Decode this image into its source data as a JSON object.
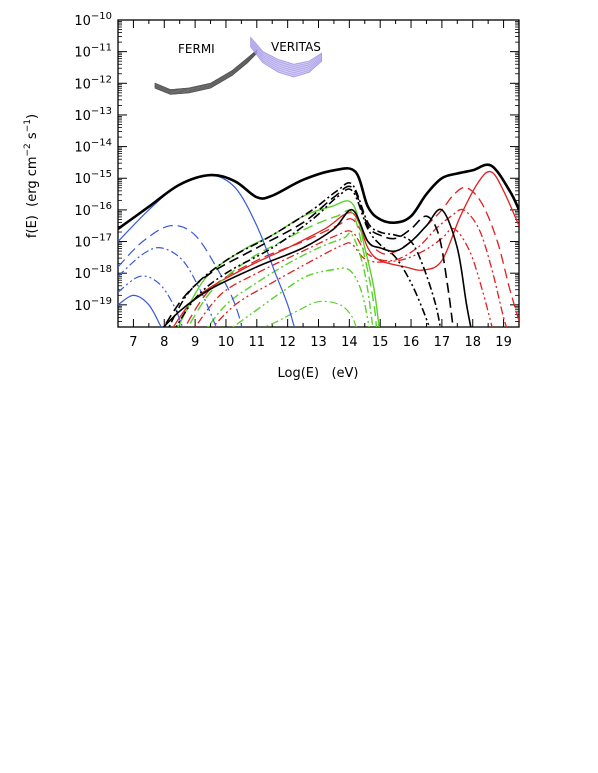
{
  "chart_data": {
    "type": "line",
    "title": "",
    "xlabel": "Log(E)   (eV)",
    "ylabel_main": "f(E)  (erg cm",
    "ylabel_exp1": "−2",
    "ylabel_mid": " s",
    "ylabel_exp2": "−1",
    "ylabel_end": ")",
    "xlim": [
      6.5,
      19.5
    ],
    "ylim_log10": [
      -19.7,
      -10
    ],
    "x_ticks": [
      7,
      8,
      9,
      10,
      11,
      12,
      13,
      14,
      15,
      16,
      17,
      18,
      19
    ],
    "y_ticks_exp": [
      -10,
      -11,
      -12,
      -13,
      -14,
      -15,
      -16,
      -17,
      -18,
      -19
    ],
    "y_tick_base": "10",
    "annotations": [
      {
        "id": "fermi",
        "text": "FERMI"
      },
      {
        "id": "veritas",
        "text": "VERITAS"
      }
    ],
    "bands": [
      {
        "name": "FERMI",
        "color": "#555555",
        "upper": [
          [
            7.7,
            -12.0
          ],
          [
            8.2,
            -12.2
          ],
          [
            8.8,
            -12.15
          ],
          [
            9.5,
            -12.0
          ],
          [
            10.2,
            -11.6
          ],
          [
            10.7,
            -11.2
          ],
          [
            11.0,
            -10.95
          ]
        ],
        "lower": [
          [
            7.7,
            -12.15
          ],
          [
            8.2,
            -12.35
          ],
          [
            8.8,
            -12.3
          ],
          [
            9.5,
            -12.15
          ],
          [
            10.2,
            -11.75
          ],
          [
            10.7,
            -11.35
          ],
          [
            11.0,
            -11.05
          ]
        ]
      },
      {
        "name": "VERITAS",
        "color": "#a89be8",
        "upper": [
          [
            10.8,
            -10.55
          ],
          [
            11.2,
            -11.0
          ],
          [
            11.7,
            -11.25
          ],
          [
            12.2,
            -11.4
          ],
          [
            12.7,
            -11.3
          ],
          [
            13.1,
            -11.05
          ]
        ],
        "lower": [
          [
            10.8,
            -10.85
          ],
          [
            11.2,
            -11.35
          ],
          [
            11.7,
            -11.65
          ],
          [
            12.2,
            -11.8
          ],
          [
            12.7,
            -11.65
          ],
          [
            13.1,
            -11.3
          ]
        ]
      }
    ],
    "series": [
      {
        "color": "#000000",
        "dash": "",
        "width": 2.6,
        "points": [
          [
            6.5,
            -16.6
          ],
          [
            7.5,
            -15.9
          ],
          [
            8.5,
            -15.2
          ],
          [
            9.5,
            -14.9
          ],
          [
            10.3,
            -15.1
          ],
          [
            11.0,
            -15.6
          ],
          [
            11.5,
            -15.55
          ],
          [
            12.5,
            -15.05
          ],
          [
            13.5,
            -14.75
          ],
          [
            14.2,
            -14.8
          ],
          [
            14.6,
            -15.9
          ],
          [
            15.0,
            -16.3
          ],
          [
            15.5,
            -16.4
          ],
          [
            16.0,
            -16.2
          ],
          [
            16.5,
            -15.5
          ],
          [
            17.0,
            -15.0
          ],
          [
            17.5,
            -14.85
          ],
          [
            18.0,
            -14.75
          ],
          [
            18.6,
            -14.6
          ],
          [
            19.2,
            -15.4
          ],
          [
            19.5,
            -16.0
          ]
        ]
      },
      {
        "color": "#000000",
        "dash": "",
        "width": 1.6,
        "points": [
          [
            7.7,
            -20
          ],
          [
            8.5,
            -19.2
          ],
          [
            9.5,
            -18.5
          ],
          [
            11,
            -17.8
          ],
          [
            12.5,
            -17.2
          ],
          [
            13.5,
            -16.6
          ],
          [
            14.1,
            -16.0
          ],
          [
            14.6,
            -17.0
          ],
          [
            15,
            -17.2
          ],
          [
            15.5,
            -17.3
          ],
          [
            16,
            -17.0
          ],
          [
            16.5,
            -16.5
          ],
          [
            17,
            -16.0
          ],
          [
            17.5,
            -17.2
          ],
          [
            17.8,
            -19.0
          ],
          [
            18,
            -20
          ]
        ]
      },
      {
        "color": "#000000",
        "dash": "10,5",
        "width": 1.6,
        "points": [
          [
            7.8,
            -20
          ],
          [
            8.6,
            -18.8
          ],
          [
            9.5,
            -18.0
          ],
          [
            11,
            -17.2
          ],
          [
            12.5,
            -16.4
          ],
          [
            13.5,
            -15.6
          ],
          [
            14.1,
            -15.3
          ],
          [
            14.6,
            -16.5
          ],
          [
            15,
            -16.8
          ],
          [
            15.5,
            -16.9
          ],
          [
            16,
            -16.6
          ],
          [
            16.5,
            -16.2
          ],
          [
            16.9,
            -16.8
          ],
          [
            17.2,
            -18.5
          ],
          [
            17.4,
            -20
          ]
        ]
      },
      {
        "color": "#000000",
        "dash": "8,3,2,3",
        "width": 1.6,
        "points": [
          [
            8.0,
            -20
          ],
          [
            8.8,
            -18.6
          ],
          [
            10,
            -17.6
          ],
          [
            11.5,
            -16.8
          ],
          [
            12.8,
            -16.0
          ],
          [
            13.6,
            -15.4
          ],
          [
            14.1,
            -15.2
          ],
          [
            14.6,
            -16.4
          ],
          [
            15,
            -16.7
          ],
          [
            15.5,
            -16.8
          ],
          [
            16,
            -17.0
          ],
          [
            16.4,
            -17.8
          ],
          [
            16.8,
            -19.0
          ],
          [
            17.0,
            -20
          ]
        ]
      },
      {
        "color": "#000000",
        "dash": "8,3,2,3,2,3",
        "width": 1.6,
        "points": [
          [
            8.2,
            -20
          ],
          [
            9,
            -18.8
          ],
          [
            10,
            -18.0
          ],
          [
            11.5,
            -17.2
          ],
          [
            12.8,
            -16.3
          ],
          [
            13.6,
            -15.6
          ],
          [
            14.1,
            -15.4
          ],
          [
            14.6,
            -16.6
          ],
          [
            15,
            -17.1
          ],
          [
            15.5,
            -17.5
          ],
          [
            16,
            -18.3
          ],
          [
            16.4,
            -19.2
          ],
          [
            16.7,
            -20
          ]
        ]
      },
      {
        "color": "#3a5bd9",
        "dash": "",
        "width": 1.2,
        "points": [
          [
            6.5,
            -17.0
          ],
          [
            7.5,
            -16.0
          ],
          [
            8.5,
            -15.2
          ],
          [
            9.5,
            -14.9
          ],
          [
            10.3,
            -15.3
          ],
          [
            11,
            -16.5
          ],
          [
            11.6,
            -18.0
          ],
          [
            12.0,
            -19.0
          ],
          [
            12.3,
            -20
          ]
        ]
      },
      {
        "color": "#3a5bd9",
        "dash": "10,5",
        "width": 1.2,
        "points": [
          [
            6.5,
            -17.8
          ],
          [
            7.3,
            -17.0
          ],
          [
            8.2,
            -16.5
          ],
          [
            9.0,
            -16.8
          ],
          [
            9.8,
            -18.0
          ],
          [
            10.3,
            -19.0
          ],
          [
            10.6,
            -20
          ]
        ]
      },
      {
        "color": "#3a5bd9",
        "dash": "8,3,2,3",
        "width": 1.2,
        "points": [
          [
            6.5,
            -18.1
          ],
          [
            7.3,
            -17.4
          ],
          [
            7.9,
            -17.2
          ],
          [
            8.6,
            -17.6
          ],
          [
            9.2,
            -18.6
          ],
          [
            9.6,
            -19.5
          ],
          [
            9.8,
            -20
          ]
        ]
      },
      {
        "color": "#3a5bd9",
        "dash": "8,3,2,3,2,3",
        "width": 1.2,
        "points": [
          [
            6.5,
            -18.6
          ],
          [
            7.2,
            -18.1
          ],
          [
            7.8,
            -18.3
          ],
          [
            8.3,
            -19.0
          ],
          [
            8.7,
            -20
          ]
        ]
      },
      {
        "color": "#3a5bd9",
        "dash": "",
        "width": 1.2,
        "points": [
          [
            6.5,
            -19.0
          ],
          [
            7.0,
            -18.7
          ],
          [
            7.5,
            -19.0
          ],
          [
            7.9,
            -19.7
          ],
          [
            8.1,
            -20
          ]
        ]
      },
      {
        "color": "#5ad22a",
        "dash": "",
        "width": 1.4,
        "points": [
          [
            8.3,
            -20
          ],
          [
            9.3,
            -18.2
          ],
          [
            10.5,
            -17.3
          ],
          [
            11.5,
            -16.8
          ],
          [
            12.5,
            -16.2
          ],
          [
            13.4,
            -15.9
          ],
          [
            14.1,
            -15.8
          ],
          [
            14.5,
            -17.2
          ],
          [
            14.8,
            -18.5
          ],
          [
            15.0,
            -20
          ]
        ]
      },
      {
        "color": "#5ad22a",
        "dash": "10,5",
        "width": 1.4,
        "points": [
          [
            8.6,
            -20
          ],
          [
            9.5,
            -18.6
          ],
          [
            10.7,
            -17.6
          ],
          [
            11.8,
            -17.0
          ],
          [
            12.8,
            -16.5
          ],
          [
            13.6,
            -16.2
          ],
          [
            14.1,
            -16.1
          ],
          [
            14.5,
            -17.5
          ],
          [
            14.8,
            -19.0
          ],
          [
            14.9,
            -20
          ]
        ]
      },
      {
        "color": "#5ad22a",
        "dash": "8,3,2,3",
        "width": 1.4,
        "points": [
          [
            9.2,
            -20
          ],
          [
            10,
            -19.0
          ],
          [
            11,
            -18.3
          ],
          [
            12,
            -17.7
          ],
          [
            13,
            -17.2
          ],
          [
            13.8,
            -16.9
          ],
          [
            14.1,
            -16.8
          ],
          [
            14.5,
            -18.0
          ],
          [
            14.8,
            -20
          ]
        ]
      },
      {
        "color": "#5ad22a",
        "dash": "8,3,2,3,2,3",
        "width": 1.4,
        "points": [
          [
            9.8,
            -20
          ],
          [
            10.8,
            -19.3
          ],
          [
            11.8,
            -18.6
          ],
          [
            12.6,
            -18.1
          ],
          [
            13.4,
            -17.9
          ],
          [
            14.0,
            -17.9
          ],
          [
            14.4,
            -18.6
          ],
          [
            14.7,
            -20
          ]
        ]
      },
      {
        "color": "#5ad22a",
        "dash": "8,3,2,3",
        "width": 1.2,
        "points": [
          [
            10.5,
            -20
          ],
          [
            11.5,
            -19.6
          ],
          [
            12.3,
            -19.2
          ],
          [
            13.0,
            -18.9
          ],
          [
            13.7,
            -19.0
          ],
          [
            14.1,
            -19.4
          ],
          [
            14.3,
            -20
          ]
        ]
      },
      {
        "color": "#e02020",
        "dash": "",
        "width": 1.3,
        "points": [
          [
            8.1,
            -20
          ],
          [
            9,
            -18.8
          ],
          [
            10.5,
            -17.9
          ],
          [
            12,
            -17.2
          ],
          [
            13.2,
            -16.6
          ],
          [
            14.1,
            -16.1
          ],
          [
            14.6,
            -17.2
          ],
          [
            15.0,
            -17.6
          ],
          [
            15.8,
            -17.8
          ],
          [
            16.4,
            -17.9
          ],
          [
            17.0,
            -17.6
          ],
          [
            17.6,
            -16.2
          ],
          [
            18.2,
            -15.1
          ],
          [
            18.6,
            -14.8
          ],
          [
            19.0,
            -15.4
          ],
          [
            19.5,
            -16.5
          ]
        ]
      },
      {
        "color": "#e02020",
        "dash": "10,5",
        "width": 1.3,
        "points": [
          [
            8.5,
            -20
          ],
          [
            9.5,
            -18.5
          ],
          [
            11,
            -17.6
          ],
          [
            12.5,
            -17.0
          ],
          [
            13.6,
            -16.5
          ],
          [
            14.1,
            -16.3
          ],
          [
            14.6,
            -17.0
          ],
          [
            15.2,
            -17.4
          ],
          [
            16,
            -17.0
          ],
          [
            16.5,
            -16.5
          ],
          [
            17.0,
            -16.0
          ],
          [
            17.4,
            -15.5
          ],
          [
            17.8,
            -15.3
          ],
          [
            18.3,
            -15.8
          ],
          [
            18.8,
            -17.0
          ],
          [
            19.2,
            -18.5
          ],
          [
            19.5,
            -19.5
          ]
        ]
      },
      {
        "color": "#e02020",
        "dash": "8,3,2,3",
        "width": 1.3,
        "points": [
          [
            8.8,
            -20
          ],
          [
            9.8,
            -18.7
          ],
          [
            11,
            -18.0
          ],
          [
            12.5,
            -17.3
          ],
          [
            13.6,
            -16.8
          ],
          [
            14.1,
            -16.7
          ],
          [
            14.6,
            -17.4
          ],
          [
            15.4,
            -17.6
          ],
          [
            16.2,
            -17.2
          ],
          [
            16.8,
            -16.6
          ],
          [
            17.3,
            -16.2
          ],
          [
            17.7,
            -16.0
          ],
          [
            18.2,
            -16.6
          ],
          [
            18.6,
            -17.8
          ],
          [
            19.0,
            -19.4
          ],
          [
            19.2,
            -20
          ]
        ]
      },
      {
        "color": "#e02020",
        "dash": "8,3,2,3,2,3",
        "width": 1.3,
        "points": [
          [
            9.3,
            -20
          ],
          [
            10.3,
            -19.0
          ],
          [
            11.5,
            -18.3
          ],
          [
            12.8,
            -17.6
          ],
          [
            13.8,
            -17.1
          ],
          [
            14.1,
            -17.1
          ],
          [
            14.6,
            -17.6
          ],
          [
            15.6,
            -17.6
          ],
          [
            16.4,
            -17.3
          ],
          [
            17.0,
            -16.9
          ],
          [
            17.4,
            -16.6
          ],
          [
            17.9,
            -17.3
          ],
          [
            18.3,
            -18.5
          ],
          [
            18.6,
            -19.6
          ],
          [
            18.7,
            -20
          ]
        ]
      }
    ]
  }
}
